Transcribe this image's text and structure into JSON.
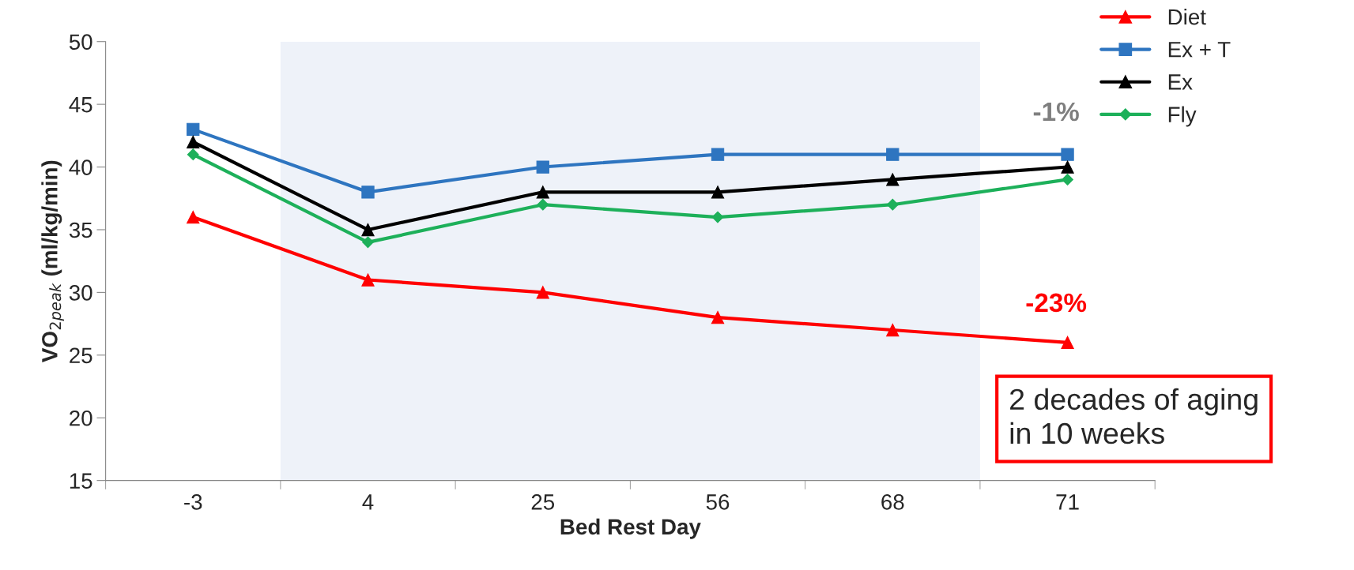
{
  "chart_data": {
    "type": "line",
    "xlabel": "Bed Rest Day",
    "ylabel": "VO$_{2peak}$ (ml/kg/min)",
    "categories": [
      "-3",
      "4",
      "25",
      "56",
      "68",
      "71"
    ],
    "series": [
      {
        "name": "Diet",
        "color": "#ff0000",
        "marker": "triangle",
        "values": [
          36,
          31,
          30,
          28,
          27,
          26
        ]
      },
      {
        "name": "Ex + T",
        "color": "#2e75c0",
        "marker": "square",
        "values": [
          43,
          38,
          40,
          41,
          41,
          41
        ]
      },
      {
        "name": "Ex",
        "color": "#000000",
        "marker": "triangle",
        "values": [
          42,
          35,
          38,
          38,
          39,
          40
        ]
      },
      {
        "name": "Fly",
        "color": "#1db05a",
        "marker": "diamond",
        "values": [
          41,
          34,
          37,
          36,
          37,
          39
        ]
      }
    ],
    "ylim": [
      15,
      50
    ],
    "yticks": [
      15,
      20,
      25,
      30,
      35,
      40,
      45,
      50
    ],
    "bands": [
      {
        "axis": "x",
        "from": "4",
        "to": "68",
        "color": "#eef2f9"
      }
    ],
    "annotations": [
      "-1%",
      "-23%",
      "2 decades of aging\nin 10 weeks"
    ],
    "legend": "top right",
    "grid": false
  }
}
